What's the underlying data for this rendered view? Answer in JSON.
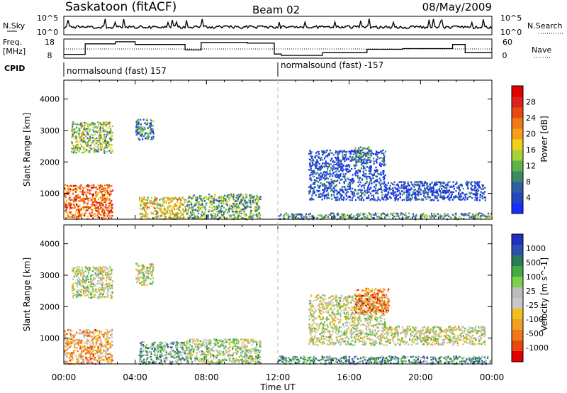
{
  "header": {
    "station": "Saskatoon (fitACF)",
    "beam": "Beam 02",
    "date": "08/May/2009"
  },
  "top_panel": {
    "left_label": "N.Sky",
    "right_label": "N.Search",
    "left_ticks": [
      "10^5",
      "10^0"
    ],
    "right_ticks": [
      "10^5",
      "10^0"
    ]
  },
  "freq_panel": {
    "left_label": "Freq.",
    "left_unit": "[MHz]",
    "right_label": "Nave",
    "left_ticks": [
      18,
      8
    ],
    "right_ticks": [
      60,
      0
    ],
    "ylim": [
      6,
      20
    ]
  },
  "cpid": {
    "label": "CPID",
    "segments": [
      {
        "name": "normalsound (fast) 157",
        "start_h": 0
      },
      {
        "name": "normalsound (fast) -157",
        "start_h": 12
      }
    ]
  },
  "time_axis": {
    "label": "Time UT",
    "ticks": [
      "00:00",
      "04:00",
      "08:00",
      "12:00",
      "16:00",
      "20:00",
      "00:00"
    ],
    "range_h": [
      0,
      24
    ]
  },
  "chart_data": [
    {
      "type": "heatmap",
      "name": "power",
      "ylabel": "Slant Range [km]",
      "yticks": [
        1000,
        2000,
        3000,
        4000
      ],
      "ylim": [
        180,
        4600
      ],
      "colorbar_label": "Power [dB]",
      "colorbar_ticks": [
        "4",
        "8",
        "12",
        "16",
        "20",
        "24",
        "28"
      ],
      "colors": [
        "#1a2dff",
        "#2446c0",
        "#2f5fa0",
        "#3c8a6a",
        "#5fb34a",
        "#a8d23a",
        "#f0d21e",
        "#f5a018",
        "#f07c14",
        "#e84a10",
        "#e02020",
        "#e00000"
      ],
      "regions": [
        {
          "t": [
            0.0,
            2.7
          ],
          "r": [
            200,
            1300
          ],
          "v": 0.75
        },
        {
          "t": [
            4.2,
            6.8
          ],
          "r": [
            200,
            900
          ],
          "v": 0.55
        },
        {
          "t": [
            6.8,
            11.0
          ],
          "r": [
            200,
            1000
          ],
          "v": 0.35
        },
        {
          "t": [
            0.4,
            2.7
          ],
          "r": [
            2300,
            3300
          ],
          "v": 0.4
        },
        {
          "t": [
            4.0,
            5.0
          ],
          "r": [
            2700,
            3400
          ],
          "v": 0.25
        },
        {
          "t": [
            12.0,
            24.0
          ],
          "r": [
            200,
            400
          ],
          "v": 0.3
        },
        {
          "t": [
            13.7,
            18.0
          ],
          "r": [
            800,
            2400
          ],
          "v": 0.12
        },
        {
          "t": [
            18.0,
            23.6
          ],
          "r": [
            800,
            1400
          ],
          "v": 0.1
        },
        {
          "t": [
            16.3,
            17.2
          ],
          "r": [
            2000,
            2500
          ],
          "v": 0.25
        }
      ]
    },
    {
      "type": "heatmap",
      "name": "velocity",
      "ylabel": "Slant Range [km]",
      "yticks": [
        1000,
        2000,
        3000,
        4000
      ],
      "ylim": [
        180,
        4600
      ],
      "colorbar_label": "Velocity [m s^-1]",
      "colorbar_ticks": [
        "1000",
        "500",
        "100",
        "25",
        "-25",
        "-100",
        "-500",
        "-1000"
      ],
      "colors": [
        "#2030c0",
        "#3050b0",
        "#2a7a5a",
        "#44aa44",
        "#7cd04c",
        "#bcbcbc",
        "#c8c8c8",
        "#f0c020",
        "#f0a020",
        "#f07818",
        "#e84810",
        "#e00000"
      ],
      "regions": [
        {
          "t": [
            0.0,
            2.7
          ],
          "r": [
            200,
            1300
          ],
          "v": 0.7
        },
        {
          "t": [
            4.2,
            6.8
          ],
          "r": [
            200,
            900
          ],
          "v": 0.3
        },
        {
          "t": [
            6.8,
            11.0
          ],
          "r": [
            200,
            1000
          ],
          "v": 0.45
        },
        {
          "t": [
            0.4,
            2.7
          ],
          "r": [
            2300,
            3300
          ],
          "v": 0.48
        },
        {
          "t": [
            4.0,
            5.0
          ],
          "r": [
            2700,
            3400
          ],
          "v": 0.48
        },
        {
          "t": [
            12.0,
            24.0
          ],
          "r": [
            200,
            450
          ],
          "v": 0.28
        },
        {
          "t": [
            13.7,
            18.0
          ],
          "r": [
            800,
            2400
          ],
          "v": 0.5
        },
        {
          "t": [
            16.3,
            18.2
          ],
          "r": [
            1800,
            2600
          ],
          "v": 0.8
        },
        {
          "t": [
            18.0,
            23.6
          ],
          "r": [
            800,
            1400
          ],
          "v": 0.5
        }
      ]
    }
  ]
}
